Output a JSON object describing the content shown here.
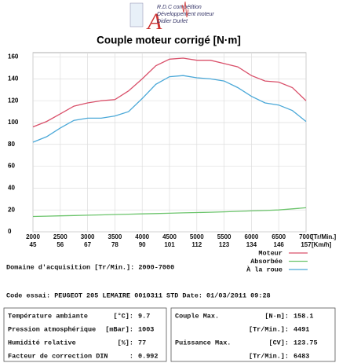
{
  "logo": {
    "line1": "R.D.C compétition",
    "line2": "Développement moteur",
    "line3": "Didier Durlet"
  },
  "chart_data": {
    "type": "line",
    "title": "Couple moteur corrigé [N·m]",
    "x": [
      2000,
      2250,
      2500,
      2750,
      3000,
      3250,
      3500,
      3750,
      4000,
      4250,
      4500,
      4750,
      5000,
      5250,
      5500,
      5750,
      6000,
      6250,
      6500,
      6750,
      7000
    ],
    "series": [
      {
        "name": "Moteur",
        "color": "#d9506a",
        "values": [
          96,
          101,
          108,
          115,
          118,
          120,
          121,
          129,
          140,
          152,
          158,
          159,
          157,
          157,
          154,
          151,
          143,
          138,
          137,
          132,
          120
        ]
      },
      {
        "name": "Absorbée",
        "color": "#6cc46c",
        "values": [
          14,
          14.3,
          14.6,
          14.9,
          15.2,
          15.5,
          15.8,
          16.1,
          16.4,
          16.7,
          17,
          17.3,
          17.6,
          17.9,
          18.3,
          18.7,
          19.1,
          19.5,
          20,
          21,
          22
        ]
      },
      {
        "name": "À la roue",
        "color": "#4aa8d8",
        "values": [
          82,
          87,
          95,
          102,
          104,
          104,
          106,
          110,
          122,
          135,
          142,
          143,
          141,
          140,
          138,
          132,
          124,
          118,
          116,
          111,
          101
        ]
      }
    ],
    "xlim": [
      2000,
      7000
    ],
    "xticks": [
      2000,
      2500,
      3000,
      3500,
      4000,
      4500,
      5000,
      5500,
      6000,
      6500,
      7000
    ],
    "x_unit": "[Tr/Min.]",
    "x2ticks": [
      45,
      56,
      67,
      78,
      90,
      101,
      112,
      123,
      134,
      146,
      157
    ],
    "x2_unit": "[Km/h]",
    "ylim": [
      0,
      164
    ],
    "yticks": [
      0,
      20,
      40,
      60,
      80,
      100,
      120,
      140,
      160
    ],
    "grid": true
  },
  "acquisition": "Domaine d'acquisition [Tr/Min.]: 2000-7000",
  "code": "Code essai: PEUGEOT 205 LEMAIRE 0010311 STD  Date: 01/03/2011 09:28",
  "conditions": [
    {
      "label": "Température ambiante",
      "unit": "[°C]:",
      "value": "9.7"
    },
    {
      "label": "Pression atmosphérique",
      "unit": "[mBar]:",
      "value": "1003"
    },
    {
      "label": "Humidité relative",
      "unit": "[%]:",
      "value": "77"
    },
    {
      "label": "Facteur de correction DIN",
      "unit": ":",
      "value": "0.992"
    }
  ],
  "results": [
    {
      "label": "Couple Max.",
      "unit": "[N·m]:",
      "value": "158.1"
    },
    {
      "unit": "[Tr/Min.]:",
      "value": "4491"
    },
    {
      "label": "Puissance Max.",
      "unit": "[CV]:",
      "value": "123.75"
    },
    {
      "unit": "[Tr/Min.]:",
      "value": "6483"
    }
  ]
}
